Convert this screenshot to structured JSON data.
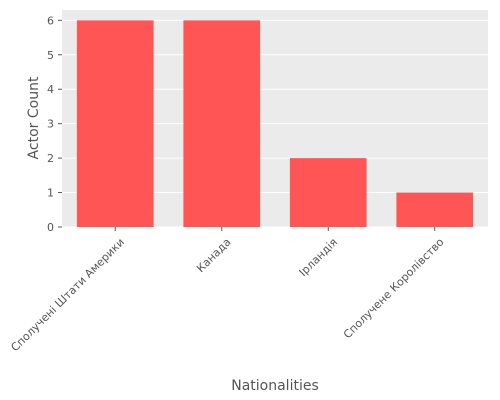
{
  "chart_data": {
    "type": "bar",
    "categories": [
      "Сполучені Штати Америки",
      "Канада",
      "Ірландія",
      "Сполучене Королівство"
    ],
    "values": [
      6,
      6,
      2,
      1
    ],
    "title": "",
    "xlabel": "Nationalities",
    "ylabel": "Actor Count",
    "ylim": [
      0,
      6.3
    ],
    "yticks": [
      "0",
      "1",
      "2",
      "3",
      "4",
      "5",
      "6"
    ],
    "grid": true,
    "bar_color": "#ff5555",
    "background_color": "#ebebeb",
    "grid_color": "#ffffff"
  }
}
